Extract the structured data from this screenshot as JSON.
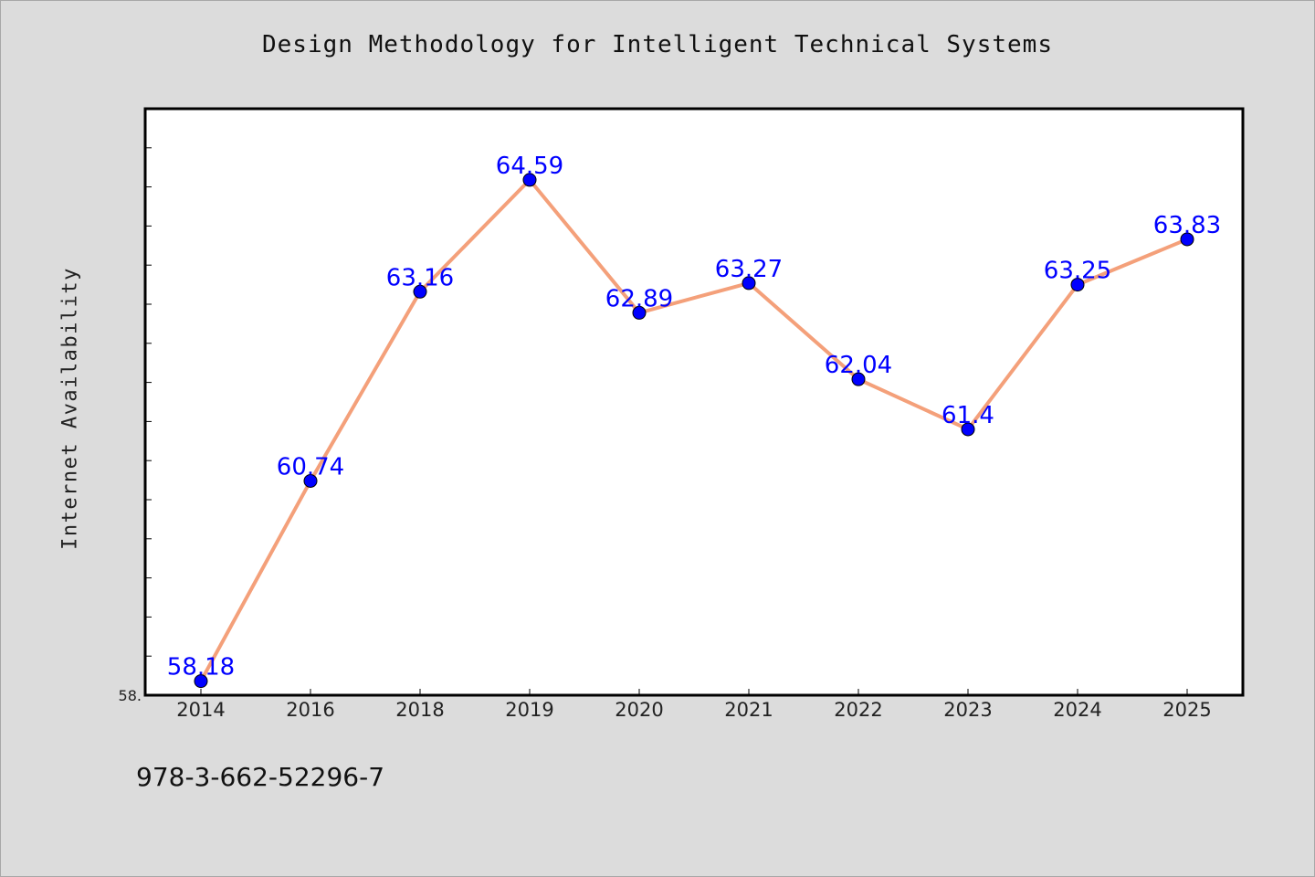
{
  "chart_data": {
    "type": "line",
    "title": "Design Methodology for Intelligent Technical Systems",
    "xlabel": "",
    "ylabel": "Internet Availability",
    "categories": [
      "2014",
      "2016",
      "2018",
      "2019",
      "2020",
      "2021",
      "2022",
      "2023",
      "2024",
      "2025"
    ],
    "series": [
      {
        "values": [
          58.18,
          60.74,
          63.16,
          64.59,
          62.89,
          63.27,
          62.04,
          61.4,
          63.25,
          63.83
        ],
        "line_color": "#f4a07a",
        "marker_color": "#0000ff"
      }
    ],
    "y_tick_labels": [
      "58."
    ],
    "ylim": [
      58.0,
      65.5
    ],
    "grid": false,
    "legend": "none",
    "data_labels": true
  },
  "footer": {
    "code": "978-3-662-52296-7"
  }
}
